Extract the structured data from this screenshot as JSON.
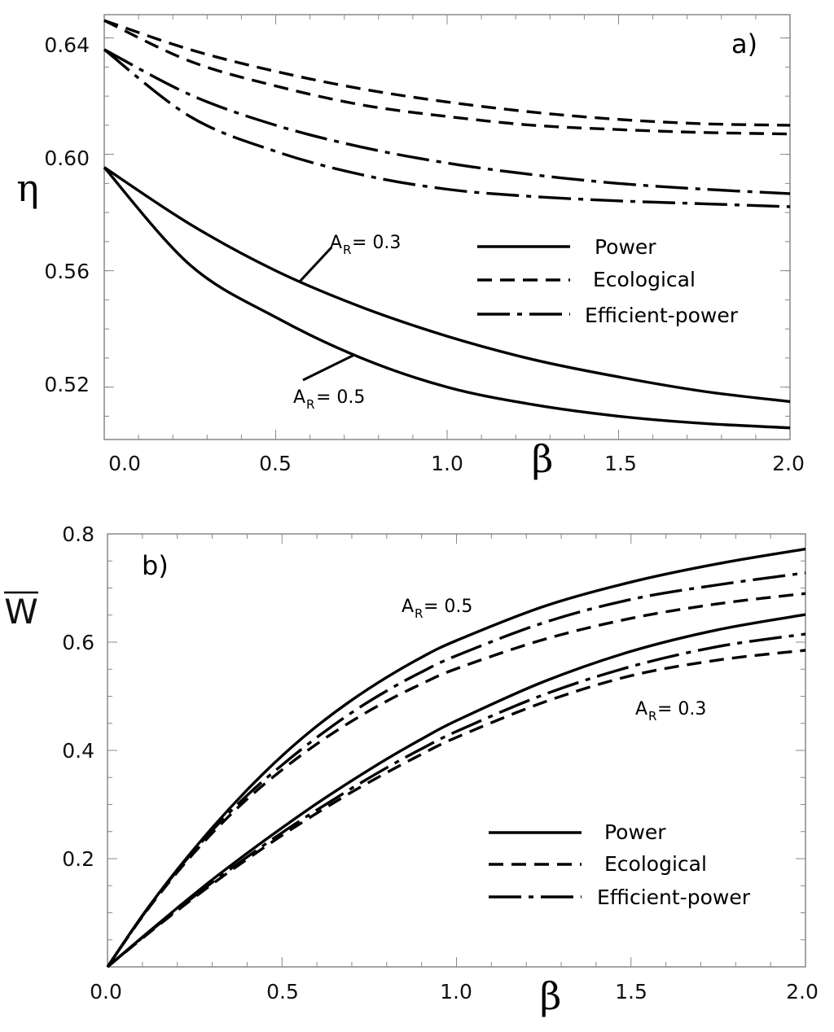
{
  "chart_data": [
    {
      "panel": "a)",
      "type": "line",
      "xlabel": "β",
      "ylabel": "η",
      "xlim": [
        0,
        2
      ],
      "ylim": [
        0.502,
        0.648
      ],
      "xticks": [
        "0.0",
        "0.5",
        "1.0",
        "1.5",
        "2.0"
      ],
      "yticks": [
        "0.52",
        "0.56",
        "0.60",
        "0.64"
      ],
      "x": [
        0.0,
        0.25,
        0.5,
        0.75,
        1.0,
        1.25,
        1.5,
        1.75,
        2.0
      ],
      "series": [
        {
          "name": "Power",
          "style": "solid",
          "A_R": "0.3",
          "values": [
            0.5955,
            0.576,
            0.56,
            0.5475,
            0.5375,
            0.5295,
            0.5235,
            0.5185,
            0.515
          ]
        },
        {
          "name": "Power",
          "style": "solid",
          "A_R": "0.5",
          "values": [
            0.5955,
            0.562,
            0.544,
            0.53,
            0.52,
            0.514,
            0.51,
            0.5075,
            0.506
          ]
        },
        {
          "name": "Ecological",
          "style": "dashed",
          "A_R": "0.3",
          "values": [
            0.646,
            0.636,
            0.6285,
            0.6225,
            0.618,
            0.6145,
            0.612,
            0.6105,
            0.61
          ]
        },
        {
          "name": "Ecological",
          "style": "dashed",
          "A_R": "0.5",
          "values": [
            0.646,
            0.632,
            0.6235,
            0.617,
            0.613,
            0.61,
            0.6085,
            0.6075,
            0.607
          ]
        },
        {
          "name": "Efficient-power",
          "style": "dashdot",
          "A_R": "0.3",
          "values": [
            0.636,
            0.6205,
            0.61,
            0.6025,
            0.597,
            0.593,
            0.59,
            0.588,
            0.5865
          ]
        },
        {
          "name": "Efficient-power",
          "style": "dashdot",
          "A_R": "0.5",
          "values": [
            0.636,
            0.613,
            0.601,
            0.593,
            0.588,
            0.5855,
            0.584,
            0.583,
            0.582
          ]
        }
      ],
      "legend": {
        "position": "middle-right",
        "entries": [
          "Power",
          "Ecological",
          "Efficient-power"
        ]
      },
      "annotations": [
        {
          "main": "A",
          "sub": "R",
          "text": "= 0.3"
        },
        {
          "main": "A",
          "sub": "R",
          "text": "= 0.5"
        }
      ]
    },
    {
      "panel": "b)",
      "type": "line",
      "xlabel": "β",
      "ylabel": "W",
      "xlim": [
        0,
        2
      ],
      "ylim": [
        0,
        0.8
      ],
      "xticks": [
        "0.0",
        "0.5",
        "1.0",
        "1.5",
        "2.0"
      ],
      "yticks": [
        "0.2",
        "0.4",
        "0.6",
        "0.8"
      ],
      "x": [
        0.0,
        0.1,
        0.2,
        0.3,
        0.4,
        0.5,
        0.6,
        0.7,
        0.8,
        0.9,
        1.0,
        1.25,
        1.5,
        1.75,
        2.0
      ],
      "series": [
        {
          "name": "Power",
          "style": "solid",
          "A_R": "0.5",
          "values": [
            0.0,
            0.095,
            0.18,
            0.257,
            0.327,
            0.39,
            0.445,
            0.493,
            0.535,
            0.572,
            0.603,
            0.666,
            0.711,
            0.745,
            0.772
          ]
        },
        {
          "name": "Efficient-power",
          "style": "dashdot",
          "A_R": "0.5",
          "values": [
            0.0,
            0.094,
            0.178,
            0.252,
            0.317,
            0.373,
            0.424,
            0.47,
            0.51,
            0.545,
            0.575,
            0.636,
            0.679,
            0.706,
            0.728
          ]
        },
        {
          "name": "Ecological",
          "style": "dashed",
          "A_R": "0.5",
          "values": [
            0.0,
            0.093,
            0.175,
            0.247,
            0.31,
            0.364,
            0.412,
            0.454,
            0.491,
            0.523,
            0.551,
            0.605,
            0.644,
            0.671,
            0.69
          ]
        },
        {
          "name": "Power",
          "style": "solid",
          "A_R": "0.3",
          "values": [
            0.0,
            0.055,
            0.109,
            0.161,
            0.21,
            0.257,
            0.302,
            0.344,
            0.384,
            0.421,
            0.455,
            0.527,
            0.583,
            0.623,
            0.651
          ]
        },
        {
          "name": "Efficient-power",
          "style": "dashdot",
          "A_R": "0.3",
          "values": [
            0.0,
            0.054,
            0.106,
            0.156,
            0.203,
            0.248,
            0.29,
            0.33,
            0.368,
            0.403,
            0.435,
            0.503,
            0.555,
            0.592,
            0.615
          ]
        },
        {
          "name": "Ecological",
          "style": "dashed",
          "A_R": "0.3",
          "values": [
            0.0,
            0.053,
            0.104,
            0.153,
            0.199,
            0.243,
            0.284,
            0.323,
            0.359,
            0.393,
            0.424,
            0.489,
            0.538,
            0.567,
            0.585
          ]
        }
      ],
      "legend": {
        "position": "bottom-right",
        "entries": [
          "Power",
          "Ecological",
          "Efficient-power"
        ]
      },
      "annotations": [
        {
          "main": "A",
          "sub": "R",
          "text": "= 0.5"
        },
        {
          "main": "A",
          "sub": "R",
          "text": "= 0.3"
        }
      ]
    }
  ]
}
